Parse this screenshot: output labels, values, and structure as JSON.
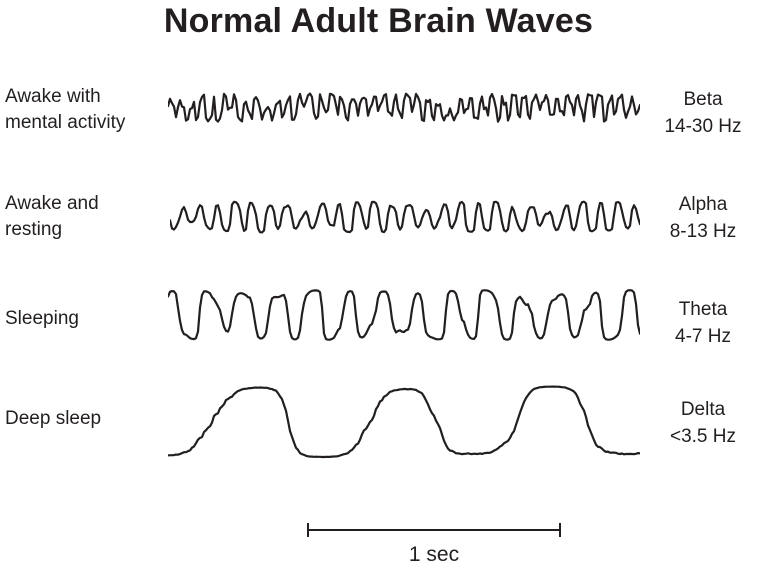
{
  "title": "Normal Adult Brain Waves",
  "ink_color": "#231f20",
  "waves": [
    {
      "condition_line1": "Awake with",
      "condition_line2": "mental activity",
      "band": "Beta",
      "freq": "14-30 Hz",
      "trace": {
        "cycles": 44,
        "amp": 11,
        "h2": 0.45,
        "sub": 0.4,
        "mod": 0.35,
        "modCycles": 5,
        "noise": 0.5,
        "clip": 1.0,
        "seed": 7
      }
    },
    {
      "condition_line1": "Awake and",
      "condition_line2": "resting",
      "band": "Alpha",
      "freq": "8-13 Hz",
      "trace": {
        "cycles": 27,
        "amp": 13,
        "h2": 0.2,
        "sub": 0.35,
        "mod": 0.45,
        "modCycles": 4,
        "noise": 0.25,
        "clip": 1.2,
        "seed": 11
      }
    },
    {
      "condition_line1": "Sleeping",
      "condition_line2": "",
      "band": "Theta",
      "freq": "4-7 Hz",
      "trace": {
        "cycles": 13.5,
        "amp": 23,
        "h2": 0.3,
        "sub": 0.25,
        "mod": 0.3,
        "modCycles": 3,
        "noise": 0.2,
        "clip": 1.6,
        "seed": 23
      }
    },
    {
      "condition_line1": "Deep sleep",
      "condition_line2": "",
      "band": "Delta",
      "freq": "<3.5 Hz",
      "trace": {
        "cycles": 3.15,
        "amp": 34,
        "h2": 0.15,
        "sub": 0.1,
        "mod": 0.15,
        "modCycles": 2,
        "noise": 0.1,
        "clip": 1.8,
        "seed": 5
      }
    }
  ],
  "scale_bar": {
    "label": "1 sec"
  }
}
